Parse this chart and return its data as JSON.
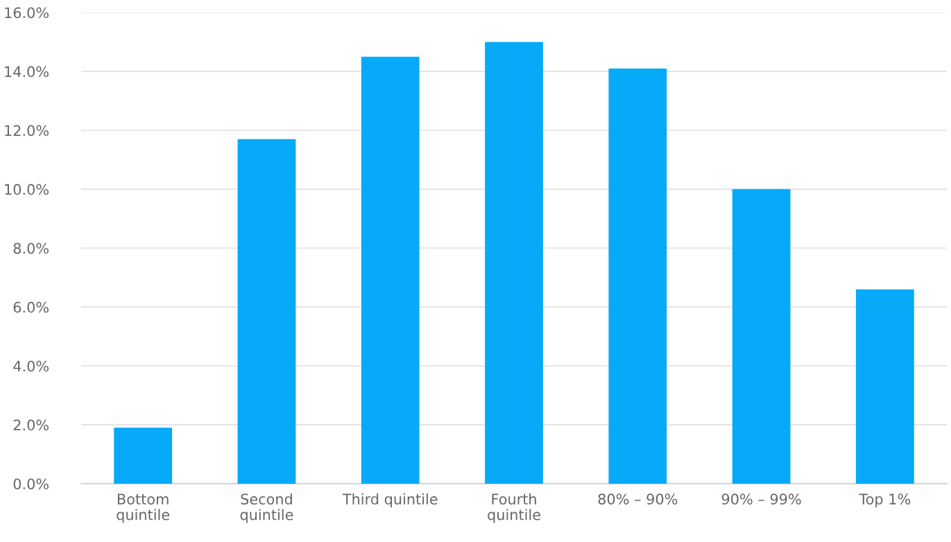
{
  "chart_data": {
    "type": "bar",
    "categories": [
      "Bottom\nquintile",
      "Second\nquintile",
      "Third quintile",
      "Fourth\nquintile",
      "80% – 90%",
      "90% – 99%",
      "Top 1%"
    ],
    "values": [
      1.9,
      11.7,
      14.5,
      15.0,
      14.1,
      10.0,
      6.6
    ],
    "color": "#06aaf9",
    "ylim": [
      0,
      16
    ],
    "yticks": [
      {
        "value": 0,
        "label": "0.0%"
      },
      {
        "value": 2,
        "label": "2.0%"
      },
      {
        "value": 4,
        "label": "4.0%"
      },
      {
        "value": 6,
        "label": "6.0%"
      },
      {
        "value": 8,
        "label": "8.0%"
      },
      {
        "value": 10,
        "label": "10.0%"
      },
      {
        "value": 12,
        "label": "12.0%"
      },
      {
        "value": 14,
        "label": "14.0%"
      },
      {
        "value": 16,
        "label": "16.0%"
      }
    ],
    "grid": "y"
  }
}
